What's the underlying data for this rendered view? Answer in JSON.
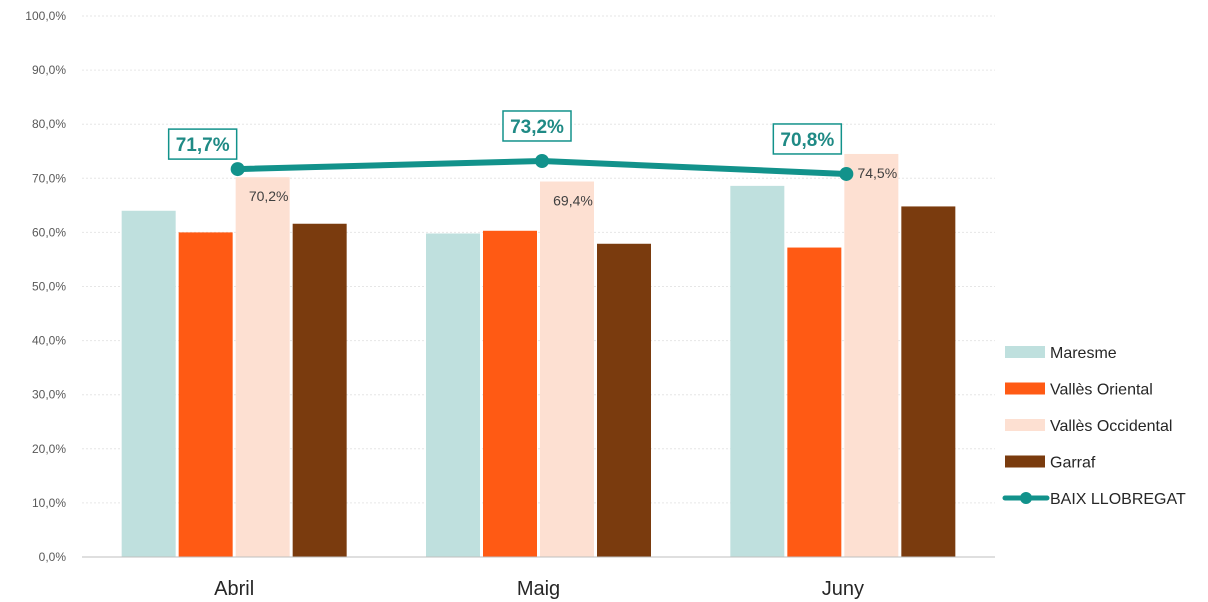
{
  "chart_data": {
    "type": "bar",
    "categories": [
      "Abril",
      "Maig",
      "Juny"
    ],
    "ylim": [
      0,
      100
    ],
    "yticks": [
      "0,0%",
      "10,0%",
      "20,0%",
      "30,0%",
      "40,0%",
      "50,0%",
      "60,0%",
      "70,0%",
      "80,0%",
      "90,0%",
      "100,0%"
    ],
    "grid": true,
    "legend_position": "right",
    "series": [
      {
        "name": "Maresme",
        "kind": "bar",
        "color": "#bfe0de",
        "values": [
          64.0,
          59.8,
          68.6
        ]
      },
      {
        "name": "Vallès Oriental",
        "kind": "bar",
        "color": "#ff5a14",
        "values": [
          60.0,
          60.3,
          57.2
        ]
      },
      {
        "name": "Vallès Occidental",
        "kind": "bar",
        "color": "#fde0d2",
        "values": [
          70.2,
          69.4,
          74.5
        ],
        "labels": [
          "70,2%",
          "69,4%",
          "74,5%"
        ]
      },
      {
        "name": "Garraf",
        "kind": "bar",
        "color": "#7a3b0e",
        "values": [
          61.6,
          57.9,
          64.8
        ]
      },
      {
        "name": "BAIX LLOBREGAT",
        "kind": "line",
        "color": "#12928b",
        "values": [
          71.7,
          73.2,
          70.8
        ],
        "labels": [
          "71,7%",
          "73,2%",
          "70,8%"
        ]
      }
    ]
  }
}
